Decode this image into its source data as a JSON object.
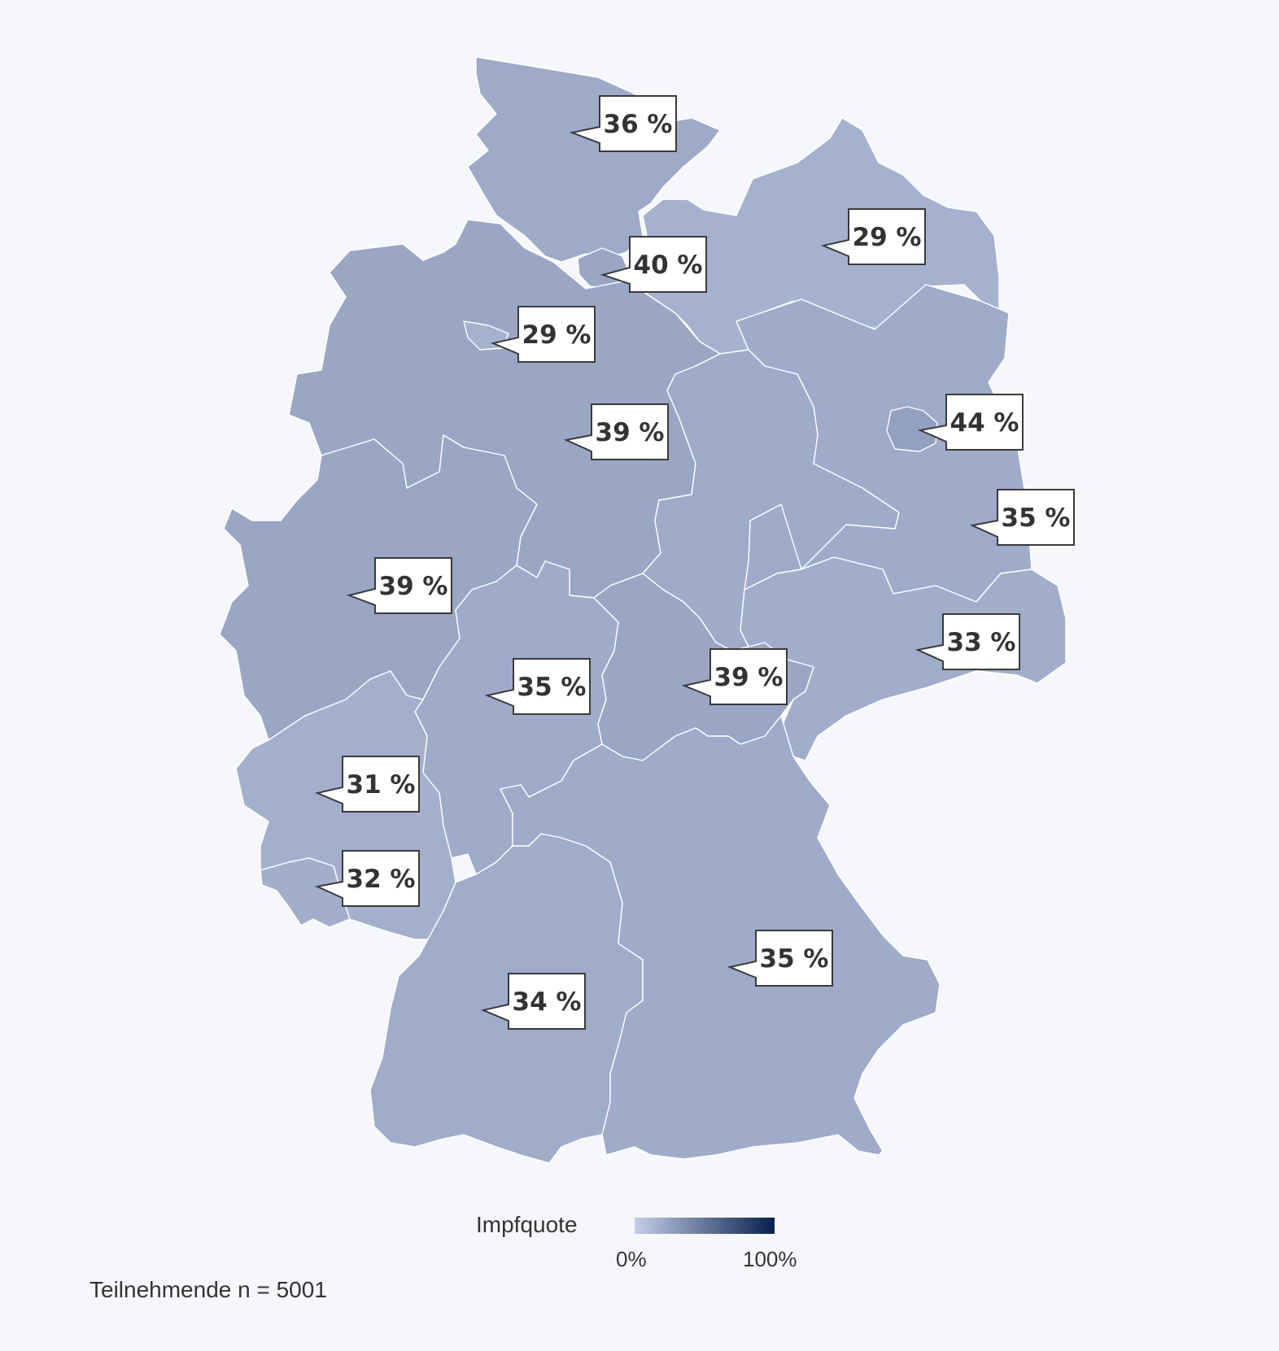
{
  "colors": {
    "background": "#f5f7fb",
    "border": "#ffffff"
  },
  "legend": {
    "title": "Impfquote",
    "min_label": "0%",
    "max_label": "100%",
    "range": [
      0,
      100
    ],
    "color_min": "#c4cee8",
    "color_max": "#07204d"
  },
  "footnote": "Teilnehmende n = 5001",
  "regions": [
    {
      "id": "sh",
      "value": 36,
      "label": "36 %"
    },
    {
      "id": "mv",
      "value": 29,
      "label": "29 %"
    },
    {
      "id": "hh",
      "value": 40,
      "label": "40 %"
    },
    {
      "id": "hb",
      "value": 29,
      "label": "29 %"
    },
    {
      "id": "ni",
      "value": 39,
      "label": "39 %"
    },
    {
      "id": "be",
      "value": 44,
      "label": "44 %"
    },
    {
      "id": "bb",
      "value": 35,
      "label": "35 %"
    },
    {
      "id": "st",
      "value": 35,
      "label": ""
    },
    {
      "id": "nw",
      "value": 39,
      "label": "39 %"
    },
    {
      "id": "sn",
      "value": 33,
      "label": "33 %"
    },
    {
      "id": "he",
      "value": 35,
      "label": "35 %"
    },
    {
      "id": "th",
      "value": 39,
      "label": "39 %"
    },
    {
      "id": "rp",
      "value": 31,
      "label": "31 %"
    },
    {
      "id": "sl",
      "value": 32,
      "label": "32 %"
    },
    {
      "id": "bw",
      "value": 34,
      "label": "34 %"
    },
    {
      "id": "by",
      "value": 35,
      "label": "35 %"
    }
  ]
}
